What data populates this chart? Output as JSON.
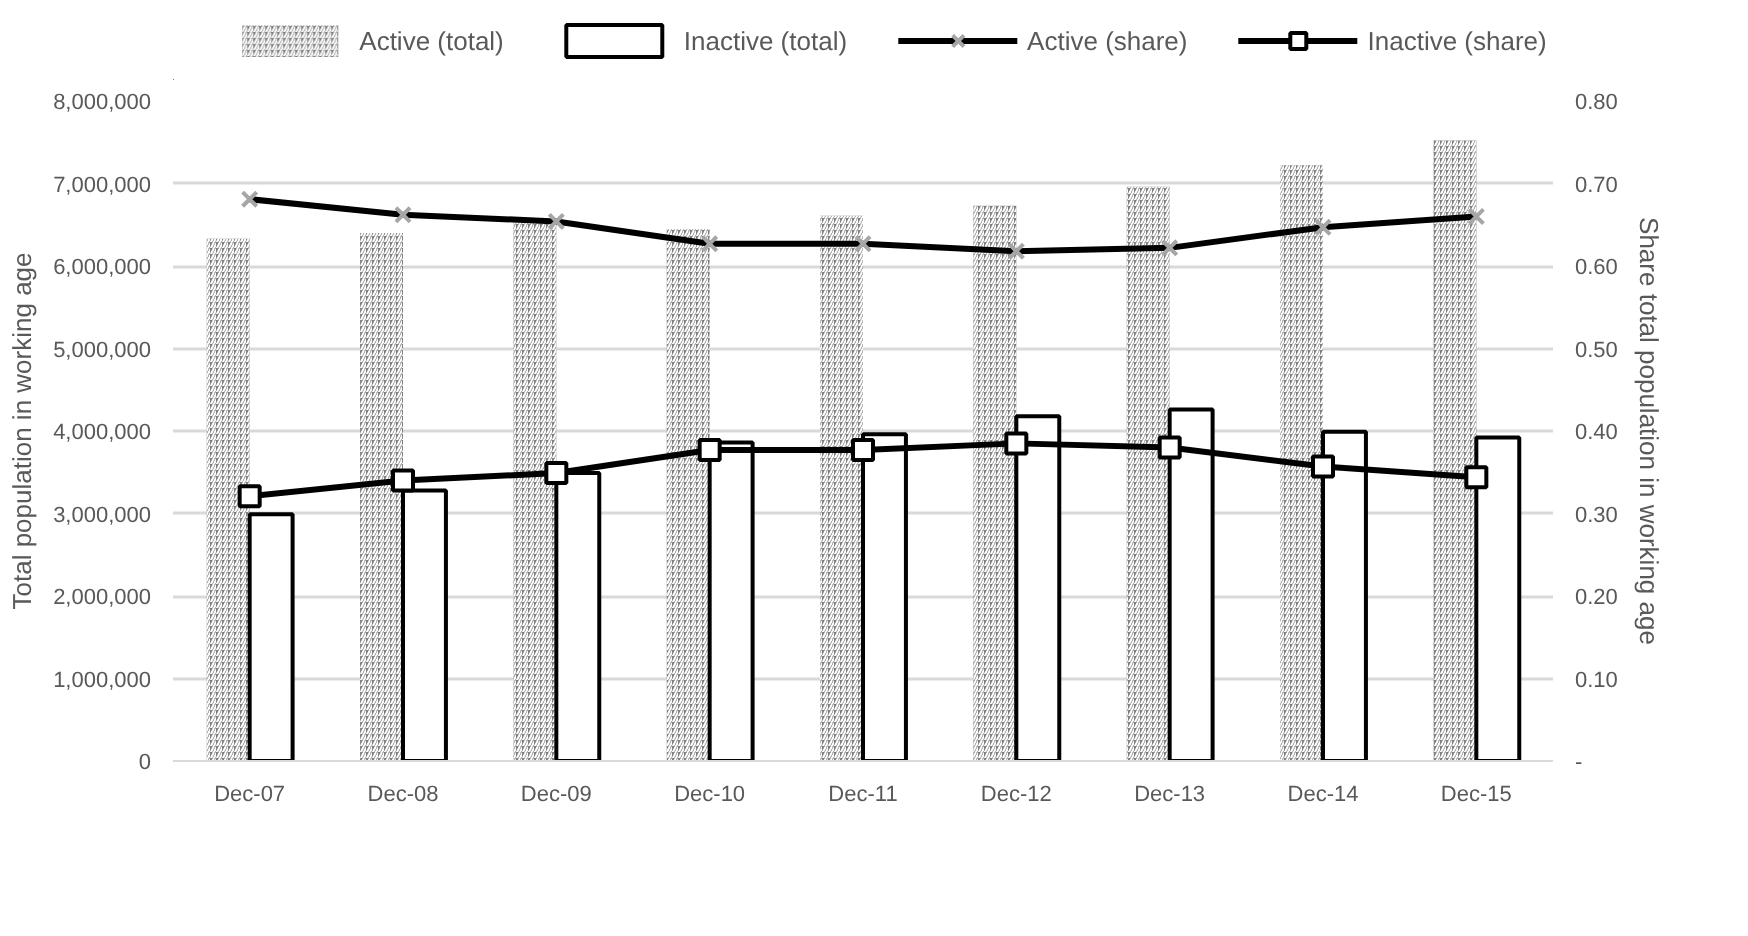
{
  "chart_data": {
    "type": "bar",
    "categories": [
      "Dec-07",
      "Dec-08",
      "Dec-09",
      "Dec-10",
      "Dec-11",
      "Dec-12",
      "Dec-13",
      "Dec-14",
      "Dec-15"
    ],
    "ylabel": "Total population in working age",
    "y2label": "Share total population in working age",
    "ylim": [
      0,
      8000000
    ],
    "yticks": [
      {
        "value": 0,
        "label": "0"
      },
      {
        "value": 1000000,
        "label": "1,000,000"
      },
      {
        "value": 2000000,
        "label": "2,000,000"
      },
      {
        "value": 3000000,
        "label": "3,000,000"
      },
      {
        "value": 4000000,
        "label": "4,000,000"
      },
      {
        "value": 5000000,
        "label": "5,000,000"
      },
      {
        "value": 6000000,
        "label": "6,000,000"
      },
      {
        "value": 7000000,
        "label": "7,000,000"
      },
      {
        "value": 8000000,
        "label": "8,000,000"
      }
    ],
    "y2lim": [
      0,
      0.8
    ],
    "y2ticks": [
      {
        "value": 0,
        "label": "-"
      },
      {
        "value": 0.1,
        "label": "0.10"
      },
      {
        "value": 0.2,
        "label": "0.20"
      },
      {
        "value": 0.3,
        "label": "0.30"
      },
      {
        "value": 0.4,
        "label": "0.40"
      },
      {
        "value": 0.5,
        "label": "0.50"
      },
      {
        "value": 0.6,
        "label": "0.60"
      },
      {
        "value": 0.7,
        "label": "0.70"
      },
      {
        "value": 0.8,
        "label": "0.80"
      }
    ],
    "grid": "y",
    "legend": "top",
    "line_style": "solid",
    "series": [
      {
        "name": "Active (total)",
        "color": "#808080",
        "values": [
          6330000,
          6400000,
          6540000,
          6450000,
          6610000,
          6730000,
          6960000,
          7220000,
          7520000
        ]
      },
      {
        "name": "Inactive (total)",
        "color": "#ffffff",
        "values": [
          2990000,
          3280000,
          3490000,
          3860000,
          3960000,
          4180000,
          4260000,
          3990000,
          3920000
        ]
      },
      {
        "name": "Active (share)",
        "type": "line",
        "axis": "y2",
        "marker": "cross",
        "color": "#000000",
        "values": [
          0.681,
          0.662,
          0.654,
          0.627,
          0.627,
          0.618,
          0.622,
          0.647,
          0.66
        ]
      },
      {
        "name": "Inactive (share)",
        "type": "line",
        "axis": "y2",
        "marker": "square",
        "color": "#000000",
        "values": [
          0.321,
          0.34,
          0.349,
          0.377,
          0.377,
          0.385,
          0.38,
          0.357,
          0.344
        ]
      }
    ]
  }
}
